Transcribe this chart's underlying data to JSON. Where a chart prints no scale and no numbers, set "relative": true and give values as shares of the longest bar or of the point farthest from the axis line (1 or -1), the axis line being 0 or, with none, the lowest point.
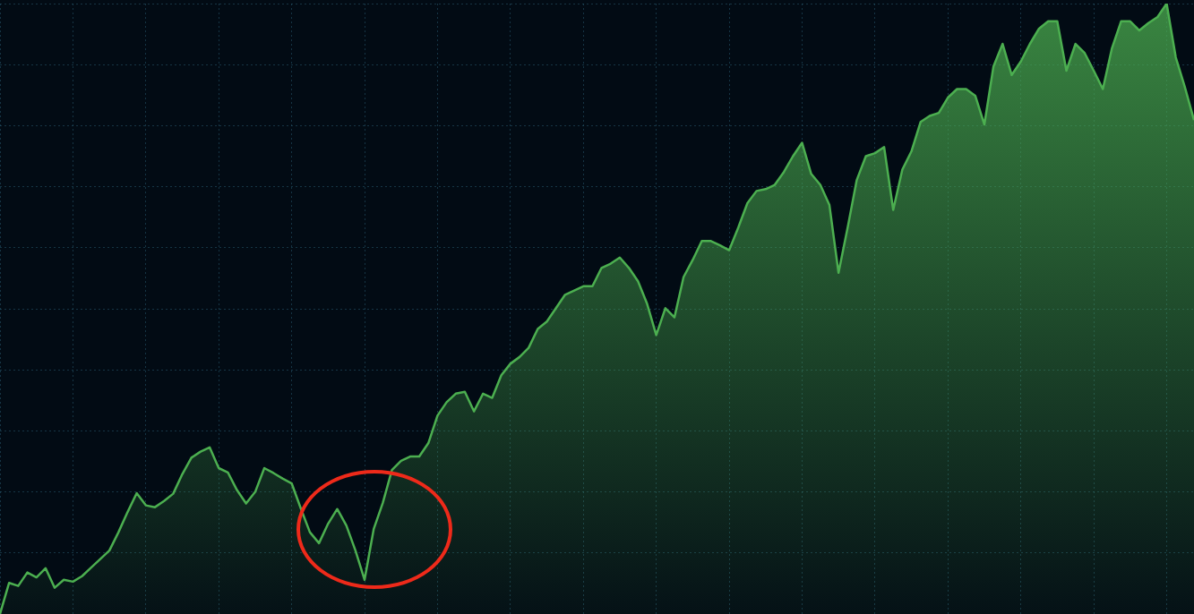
{
  "chart_data": {
    "type": "area",
    "relative": true,
    "grid": true,
    "legend": false,
    "marker": "none",
    "categories": [
      null,
      null,
      null,
      null,
      null,
      null,
      null,
      null,
      null,
      null,
      null,
      null,
      null,
      null,
      null,
      null,
      null,
      null,
      null,
      null,
      null,
      null,
      null,
      null,
      null,
      null,
      null,
      null,
      null,
      null,
      null,
      null,
      null,
      null,
      null,
      null,
      null,
      null,
      null,
      null,
      null,
      null,
      null,
      null,
      null,
      null,
      null,
      null,
      null,
      null,
      null,
      null,
      null,
      null,
      null,
      null,
      null,
      null,
      null,
      null,
      null,
      null,
      null,
      null,
      null,
      null,
      null,
      null,
      null,
      null,
      null,
      null,
      null,
      null,
      null,
      null,
      null,
      null,
      null,
      null,
      null,
      null,
      null,
      null,
      null,
      null,
      null,
      null,
      null,
      null,
      null,
      null,
      null,
      null,
      null,
      null,
      null,
      null,
      null,
      null,
      null,
      null,
      null,
      null,
      null,
      null,
      null,
      null,
      null,
      null,
      null,
      null,
      null,
      null,
      null,
      null,
      null,
      null,
      null,
      null,
      null,
      null,
      null,
      null,
      null,
      null,
      null,
      null,
      null,
      null,
      null,
      null
    ],
    "series": [
      {
        "color": "#4caf50",
        "values": [
          0,
          0.051,
          0.046,
          0.068,
          0.06,
          0.075,
          0.043,
          0.056,
          0.053,
          0.062,
          0.076,
          0.09,
          0.104,
          0.134,
          0.167,
          0.198,
          0.178,
          0.175,
          0.185,
          0.197,
          0.229,
          0.256,
          0.266,
          0.273,
          0.239,
          0.232,
          0.203,
          0.181,
          0.2,
          0.239,
          0.231,
          0.222,
          0.214,
          0.173,
          0.134,
          0.116,
          0.148,
          0.172,
          0.145,
          0.104,
          0.056,
          0.139,
          0.182,
          0.236,
          0.251,
          0.258,
          0.258,
          0.28,
          0.325,
          0.347,
          0.361,
          0.364,
          0.332,
          0.361,
          0.354,
          0.391,
          0.41,
          0.421,
          0.436,
          0.467,
          0.479,
          0.501,
          0.523,
          0.53,
          0.537,
          0.537,
          0.567,
          0.574,
          0.584,
          0.567,
          0.545,
          0.508,
          0.457,
          0.501,
          0.486,
          0.552,
          0.58,
          0.611,
          0.611,
          0.604,
          0.596,
          0.633,
          0.673,
          0.693,
          0.696,
          0.703,
          0.724,
          0.75,
          0.772,
          0.721,
          0.703,
          0.67,
          0.559,
          0.633,
          0.711,
          0.75,
          0.755,
          0.765,
          0.662,
          0.728,
          0.758,
          0.806,
          0.816,
          0.821,
          0.846,
          0.86,
          0.86,
          0.849,
          0.802,
          0.897,
          0.934,
          0.883,
          0.905,
          0.934,
          0.959,
          0.971,
          0.971,
          0.89,
          0.934,
          0.919,
          0.89,
          0.86,
          0.927,
          0.971,
          0.971,
          0.956,
          0.968,
          0.978,
          1,
          0.912,
          0.863,
          0.809
        ]
      }
    ]
  }
}
